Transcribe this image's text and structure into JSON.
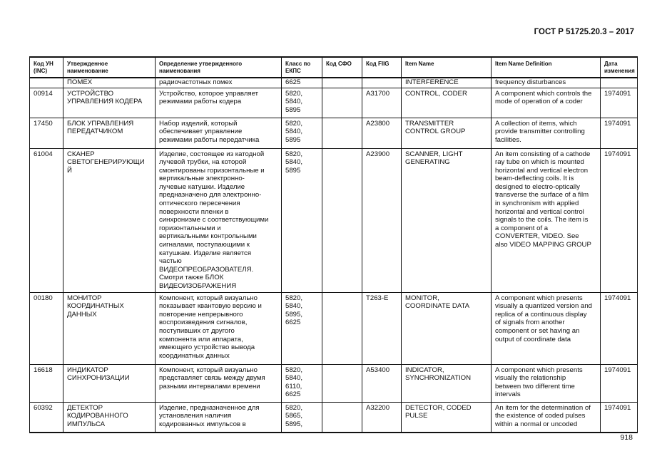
{
  "header": {
    "title": "ГОСТ Р 51725.20.3 – 2017"
  },
  "table": {
    "columns": [
      "Код УН\n(INC)",
      "Утвержденное\nнаименование",
      "Определение утвержденного\nнаименования",
      "Класс по\nЕКПС",
      "Код СФО",
      "Код FIIG",
      "Item Name",
      "Item Name Definition",
      "Дата\nизменения"
    ],
    "rows": [
      [
        "",
        "ПОМЕХ",
        "радиочастотных помех",
        "6625",
        "",
        "",
        "INTERFERENCE",
        "frequency disturbances",
        ""
      ],
      [
        "00914",
        "УСТРОЙСТВО\nУПРАВЛЕНИЯ КОДЕРА",
        "Устройство, которое управляет\nрежимами работы кодера",
        "5820,\n5840,\n5895",
        "",
        "A31700",
        "CONTROL, CODER",
        "A component which controls the\nmode of operation of a coder",
        "1974091"
      ],
      [
        "17450",
        "БЛОК УПРАВЛЕНИЯ\nПЕРЕДАТЧИКОМ",
        "Набор изделий, который\nобеспечивает управление\nрежимами работы передатчика",
        "5820,\n5840,\n5895",
        "",
        "A23800",
        "TRANSMITTER\nCONTROL GROUP",
        "A collection of items, which\nprovide transmitter controlling\nfacilities.",
        "1974091"
      ],
      [
        "61004",
        "СКАНЕР\nСВЕТОГЕНЕРИРУЮЩИ\nЙ",
        "Изделие, состоящее из катодной\nлучевой трубки, на которой\nсмонтированы горизонтальные и\nвертикальные электронно-\nлучевые катушки. Изделие\nпредназначено для электронно-\nоптического пересечения\nповерхности пленки в\nсинхронизме с соответствующими\nгоризонтальными и\nвертикальными контрольными\nсигналами, поступающими к\nкатушкам. Изделие является\nчастью\nВИДЕОПРЕОБРАЗОВАТЕЛЯ.\nСмотри также БЛОК\nВИДЕОИЗОБРАЖЕНИЯ",
        "5820,\n5840,\n5895",
        "",
        "A23900",
        "SCANNER, LIGHT\nGENERATING",
        "An item consisting of a cathode\nray tube on which is mounted\nhorizontal and vertical electron\nbeam-deflecting coils. It is\ndesigned to electro-optically\ntransverse the surface of a film\nin synchronism with applied\nhorizontal and vertical control\nsignals to the coils. The item is\na component of a\nCONVERTER, VIDEO. See\nalso VIDEO MAPPING GROUP",
        "1974091"
      ],
      [
        "00180",
        "МОНИТОР\nКООРДИНАТНЫХ\nДАННЫХ",
        "Компонент, который визуально\nпоказывает квантовую версию и\nповторение непрерывного\nвоспроизведения сигналов,\nпоступивших от другого\nкомпонента или аппарата,\nимеющего устройство вывода\nкоординатных данных",
        "5820,\n5840,\n5895,\n6625",
        "",
        "T263-E",
        "MONITOR,\nCOORDINATE DATA",
        "A component which presents\nvisually a quantized version and\nreplica of a continuous display\nof signals from another\ncomponent or set having an\noutput of coordinate data",
        "1974091"
      ],
      [
        "16618",
        "ИНДИКАТОР\nСИНХРОНИЗАЦИИ",
        "Компонент, который визуально\nпредставляет связь между двумя\nразными интервалами времени",
        "5820,\n5840,\n6110,\n6625",
        "",
        "A53400",
        "INDICATOR,\nSYNCHRONIZATION",
        "A component which presents\nvisually the relationship\nbetween two different time\nintervals",
        "1974091"
      ],
      [
        "60392",
        "ДЕТЕКТОР\nКОДИРОВАННОГО\nИМПУЛЬСА",
        "Изделие, предназначенное для\nустановления наличия\nкодированных импульсов в",
        "5820,\n5865,\n5895,",
        "",
        "A32200",
        "DETECTOR, CODED\nPULSE",
        "An item for the determination of\nthe existence of coded pulses\nwithin a normal or uncoded",
        "1974091"
      ]
    ]
  },
  "footer": {
    "page_number": "918"
  }
}
